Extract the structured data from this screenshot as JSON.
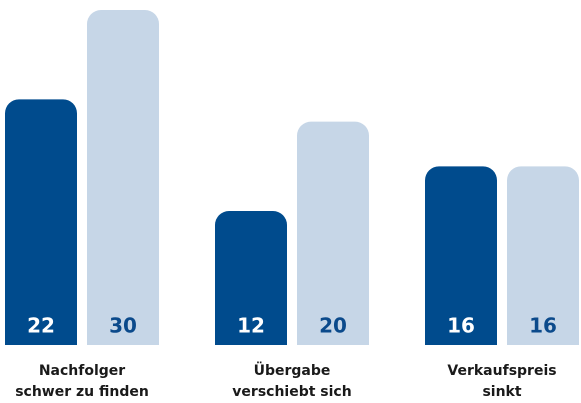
{
  "chart_data": {
    "type": "bar",
    "categories": [
      [
        "Nachfolger",
        "schwer zu finden"
      ],
      [
        "Übergabe",
        "verschiebt sich"
      ],
      [
        "Verkaufspreis",
        "sinkt"
      ]
    ],
    "series": [
      {
        "color": "#004b8d",
        "label_color": "#ffffff",
        "values": [
          22,
          12,
          16
        ]
      },
      {
        "color": "#c6d6e7",
        "label_color": "#0b4a8b",
        "values": [
          30,
          20,
          16
        ]
      }
    ],
    "ylim": [
      0,
      30
    ]
  }
}
